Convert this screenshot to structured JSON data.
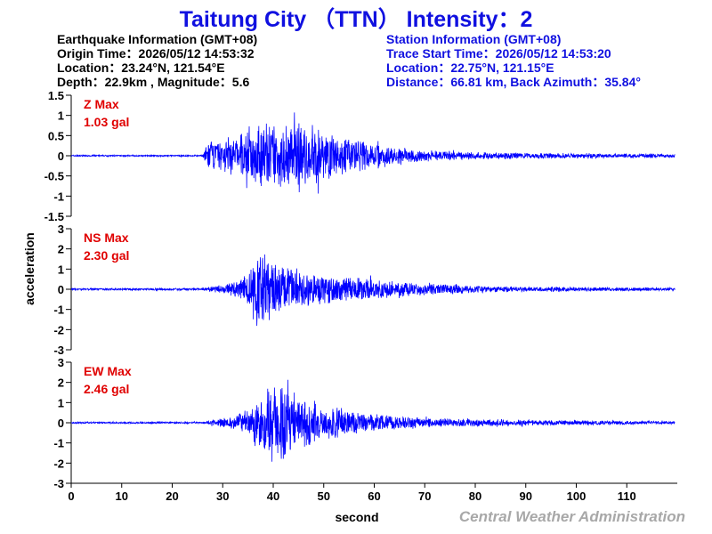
{
  "title": "Taitung City （TTN） Intensity：2",
  "earthquake": {
    "heading": "Earthquake Information  (GMT+08)",
    "origin_time": "Origin Time：2026/05/12 14:53:32",
    "location": "Location：23.24°N, 121.54°E",
    "depth_magnitude": "Depth：22.9km , Magnitude：5.6"
  },
  "station": {
    "heading": "Station Information  (GMT+08)",
    "trace_start": "Trace Start Time：2026/05/12 14:53:20",
    "location": "Location：22.75°N, 121.15°E",
    "distance": "Distance：66.81 km, Back Azimuth：35.84°"
  },
  "credit": "Central Weather Administration",
  "colors": {
    "title": "#1010e0",
    "trace": "#0000ff",
    "max_label": "#e00000",
    "credit": "#a8a8a8"
  },
  "chart_data": {
    "type": "line",
    "xlabel": "second",
    "ylabel": "acceleration",
    "xlim": [
      0,
      120
    ],
    "xticks": [
      0,
      10,
      20,
      30,
      40,
      50,
      60,
      70,
      80,
      90,
      100,
      110
    ],
    "grid": false,
    "legend": "none",
    "panels": [
      {
        "name": "Z",
        "max_label": "Z Max",
        "max_value": "1.03 gal",
        "ylim": [
          -1.5,
          1.5
        ],
        "yticks": [
          -1.5,
          -1,
          -0.5,
          0,
          0.5,
          1,
          1.5
        ],
        "ytick_labels": [
          "-1.5",
          "-1",
          "-0.5",
          "0",
          "0.5",
          "1",
          "1.5"
        ],
        "envelope": {
          "x": [
            0,
            26,
            27,
            30,
            33,
            36,
            38,
            41,
            45,
            50,
            55,
            60,
            65,
            70,
            80,
            90,
            100,
            110,
            119.5
          ],
          "y": [
            0.02,
            0.02,
            0.38,
            0.45,
            0.55,
            0.82,
            0.9,
            0.8,
            0.95,
            0.72,
            0.5,
            0.35,
            0.22,
            0.14,
            0.1,
            0.08,
            0.07,
            0.06,
            0.05
          ]
        }
      },
      {
        "name": "NS",
        "max_label": "NS Max",
        "max_value": "2.30 gal",
        "ylim": [
          -3,
          3
        ],
        "yticks": [
          -3,
          -2,
          -1,
          0,
          1,
          2,
          3
        ],
        "ytick_labels": [
          "-3",
          "-2",
          "-1",
          "0",
          "1",
          "2",
          "3"
        ],
        "envelope": {
          "x": [
            0,
            26,
            29,
            33,
            35,
            37,
            39,
            42,
            45,
            50,
            55,
            60,
            65,
            70,
            80,
            90,
            100,
            110,
            119.5
          ],
          "y": [
            0.05,
            0.06,
            0.2,
            0.45,
            0.9,
            2.2,
            1.8,
            1.2,
            1.05,
            0.85,
            0.65,
            0.55,
            0.42,
            0.32,
            0.2,
            0.14,
            0.12,
            0.1,
            0.08
          ]
        }
      },
      {
        "name": "EW",
        "max_label": "EW Max",
        "max_value": "2.46 gal",
        "ylim": [
          -3,
          3
        ],
        "yticks": [
          -3,
          -2,
          -1,
          0,
          1,
          2,
          3
        ],
        "ytick_labels": [
          "-3",
          "-2",
          "-1",
          "0",
          "1",
          "2",
          "3"
        ],
        "envelope": {
          "x": [
            0,
            26,
            29,
            33,
            35,
            37,
            39,
            41,
            43,
            46,
            50,
            55,
            60,
            65,
            70,
            80,
            90,
            100,
            110,
            119.5
          ],
          "y": [
            0.04,
            0.05,
            0.2,
            0.45,
            0.7,
            1.4,
            1.9,
            2.46,
            1.6,
            1.3,
            1.0,
            0.7,
            0.48,
            0.35,
            0.27,
            0.2,
            0.16,
            0.13,
            0.11,
            0.08
          ]
        }
      }
    ]
  }
}
